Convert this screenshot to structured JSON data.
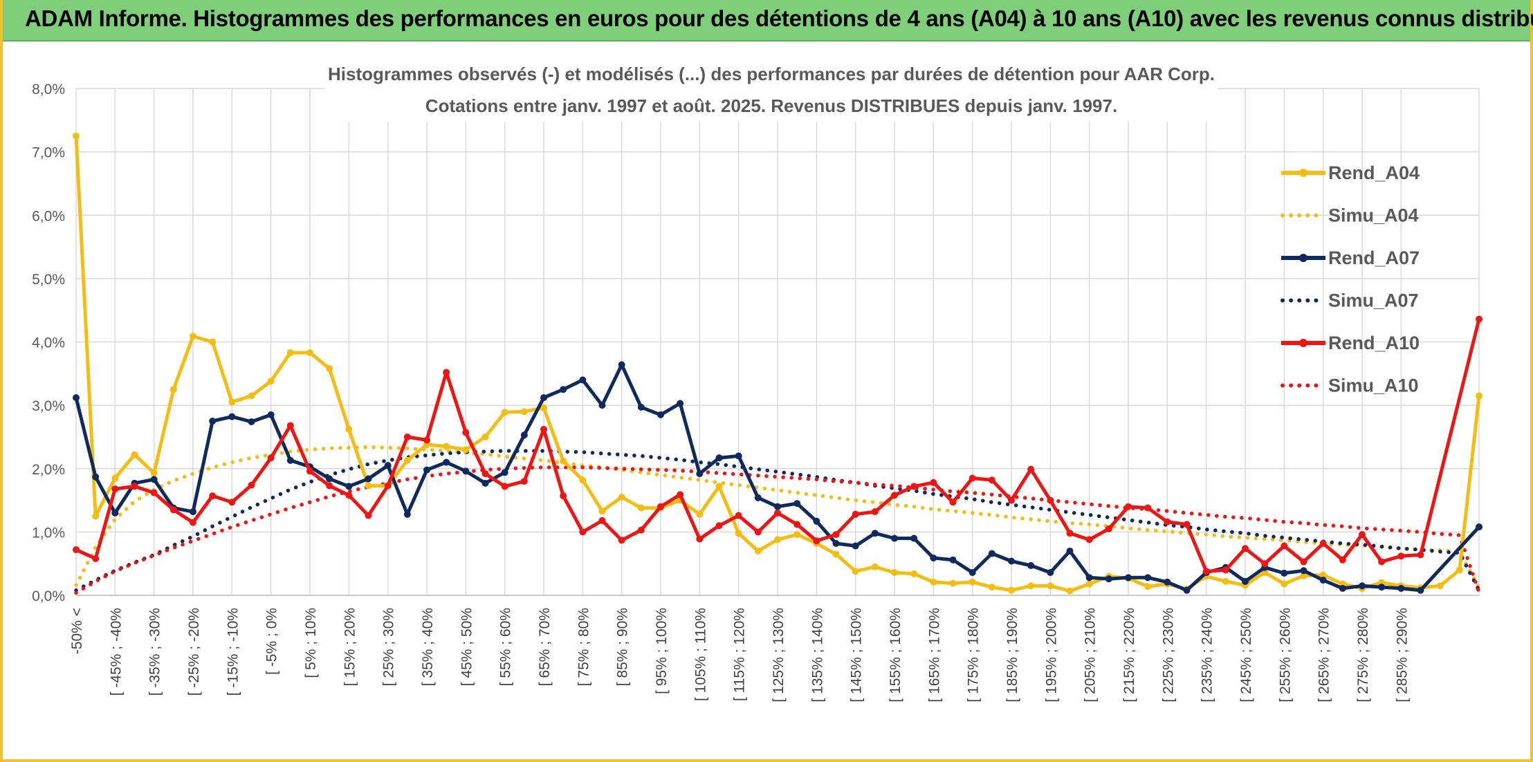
{
  "banner": {
    "title": "ADAM Informe. Histogrammes des performances en euros pour des détentions de 4 ans (A04) à 10 ans (A10) avec les revenus connus distribués"
  },
  "colors": {
    "frame": "#f0c232",
    "banner": "#7ece7a",
    "a04": "#f5bd14",
    "a07": "#0f2a5e",
    "a10": "#ee1515",
    "grid": "#d9d9d9"
  },
  "chart_data": {
    "type": "line",
    "title_line1": "Histogrammes observés (-) et modélisés (...) des performances par durées de détention pour AAR Corp.",
    "title_line2": "Cotations entre janv. 1997 et août. 2025. Revenus DISTRIBUES depuis janv. 1997.",
    "ylim": [
      0,
      8
    ],
    "yticks": [
      "0,0%",
      "1,0%",
      "2,0%",
      "3,0%",
      "4,0%",
      "5,0%",
      "6,0%",
      "7,0%",
      "8,0%"
    ],
    "grid": true,
    "legend_position": "right",
    "x_tick_labels": [
      "-50% <",
      "[ -45% ; -40%",
      "[ -35% ; -30%",
      "[ -25% ; -20%",
      "[ -15% ; -10%",
      "[ -5% ; 0%",
      "[ 5% ; 10%",
      "[ 15% ; 20%",
      "[ 25% ; 30%",
      "[ 35% ; 40%",
      "[ 45% ; 50%",
      "[ 55% ; 60%",
      "[ 65% ; 70%",
      "[ 75% ; 80%",
      "[ 85% ; 90%",
      "[ 95% ; 100%",
      "[ 105% ; 110%",
      "[ 115% ; 120%",
      "[ 125% ; 130%",
      "[ 135% ; 140%",
      "[ 145% ; 150%",
      "[ 155% ; 160%",
      "[ 165% ; 170%",
      "[ 175% ; 180%",
      "[ 185% ; 190%",
      "[ 195% ; 200%",
      "[ 205% ; 210%",
      "[ 215% ; 220%",
      "[ 225% ; 230%",
      "[ 235% ; 240%",
      "[ 245% ; 250%",
      "[ 255% ; 260%",
      "[ 265% ; 270%",
      "[ 275% ; 280%",
      "[ 285% ; 290%"
    ],
    "series": [
      {
        "name": "Rend_A04",
        "style": "solid",
        "color": "#f5bd14",
        "values": [
          7.25,
          1.25,
          1.85,
          2.22,
          1.93,
          3.25,
          4.09,
          4.0,
          3.05,
          3.15,
          3.38,
          3.83,
          3.83,
          3.58,
          2.62,
          1.73,
          1.73,
          2.13,
          2.38,
          2.35,
          2.3,
          2.5,
          2.89,
          2.9,
          2.96,
          2.12,
          1.82,
          1.33,
          1.55,
          1.38,
          1.38,
          1.5,
          1.28,
          1.72,
          0.98,
          0.7,
          0.88,
          0.96,
          0.82,
          0.65,
          0.38,
          0.45,
          0.36,
          0.34,
          0.21,
          0.19,
          0.21,
          0.13,
          0.08,
          0.15,
          0.15,
          0.07,
          0.18,
          0.3,
          0.27,
          0.14,
          0.18,
          0.1,
          0.3,
          0.22,
          0.16,
          0.36,
          0.18,
          0.31,
          0.32,
          0.18,
          0.11,
          0.2,
          0.15,
          0.12,
          0.15,
          0.4,
          3.15
        ]
      },
      {
        "name": "Simu_A04",
        "style": "dotted",
        "color": "#f5bd14",
        "values": [
          0.16,
          0.76,
          1.2,
          1.48,
          1.67,
          1.81,
          1.92,
          2.02,
          2.1,
          2.17,
          2.22,
          2.27,
          2.3,
          2.32,
          2.33,
          2.34,
          2.33,
          2.32,
          2.3,
          2.28,
          2.25,
          2.23,
          2.19,
          2.16,
          2.13,
          2.09,
          2.05,
          2.02,
          1.98,
          1.94,
          1.9,
          1.86,
          1.82,
          1.78,
          1.74,
          1.7,
          1.66,
          1.62,
          1.58,
          1.54,
          1.5,
          1.47,
          1.43,
          1.4,
          1.36,
          1.33,
          1.3,
          1.27,
          1.23,
          1.2,
          1.17,
          1.14,
          1.12,
          1.09,
          1.06,
          1.03,
          1.01,
          0.98,
          0.96,
          0.93,
          0.91,
          0.89,
          0.87,
          0.84,
          0.82,
          0.8,
          0.78,
          0.76,
          0.74,
          0.72,
          0.71,
          0.69,
          0.12
        ]
      },
      {
        "name": "Rend_A07",
        "style": "solid",
        "color": "#0f2a5e",
        "values": [
          3.12,
          1.87,
          1.3,
          1.77,
          1.83,
          1.38,
          1.32,
          2.75,
          2.82,
          2.74,
          2.85,
          2.13,
          2.03,
          1.84,
          1.72,
          1.84,
          2.05,
          1.28,
          1.98,
          2.1,
          1.96,
          1.77,
          1.94,
          2.53,
          3.12,
          3.25,
          3.4,
          3.0,
          3.64,
          2.97,
          2.85,
          3.03,
          1.92,
          2.17,
          2.2,
          1.54,
          1.4,
          1.45,
          1.17,
          0.82,
          0.78,
          0.98,
          0.9,
          0.9,
          0.59,
          0.56,
          0.36,
          0.66,
          0.54,
          0.47,
          0.36,
          0.7,
          0.28,
          0.26,
          0.28,
          0.28,
          0.21,
          0.08,
          0.36,
          0.44,
          0.22,
          0.44,
          0.35,
          0.39,
          0.24,
          0.11,
          0.15,
          0.13,
          0.11,
          0.08,
          1.08
        ]
      },
      {
        "name": "Simu_A07",
        "style": "dotted",
        "color": "#0f2a5e",
        "values": [
          0.08,
          0.24,
          0.39,
          0.52,
          0.64,
          0.79,
          0.93,
          1.09,
          1.24,
          1.39,
          1.53,
          1.67,
          1.79,
          1.9,
          1.99,
          2.07,
          2.13,
          2.18,
          2.21,
          2.24,
          2.26,
          2.27,
          2.28,
          2.28,
          2.28,
          2.27,
          2.26,
          2.24,
          2.22,
          2.2,
          2.17,
          2.14,
          2.1,
          2.07,
          2.03,
          1.99,
          1.95,
          1.91,
          1.87,
          1.82,
          1.78,
          1.73,
          1.69,
          1.65,
          1.6,
          1.56,
          1.52,
          1.47,
          1.43,
          1.39,
          1.35,
          1.31,
          1.27,
          1.23,
          1.19,
          1.15,
          1.11,
          1.08,
          1.04,
          1.01,
          0.98,
          0.94,
          0.91,
          0.88,
          0.85,
          0.82,
          0.8,
          0.77,
          0.74,
          0.72,
          0.69,
          0.67,
          0.08
        ]
      },
      {
        "name": "Rend_A10",
        "style": "solid",
        "color": "#ee1515",
        "values": [
          0.72,
          0.58,
          1.68,
          1.72,
          1.62,
          1.35,
          1.15,
          1.57,
          1.47,
          1.74,
          2.17,
          2.68,
          1.96,
          1.73,
          1.58,
          1.26,
          1.73,
          2.5,
          2.45,
          3.52,
          2.57,
          1.92,
          1.72,
          1.8,
          2.62,
          1.57,
          1.0,
          1.18,
          0.87,
          1.03,
          1.4,
          1.59,
          0.89,
          1.1,
          1.26,
          1.0,
          1.3,
          1.12,
          0.86,
          0.96,
          1.28,
          1.32,
          1.58,
          1.72,
          1.78,
          1.47,
          1.85,
          1.82,
          1.5,
          1.99,
          1.5,
          0.98,
          0.88,
          1.05,
          1.4,
          1.38,
          1.16,
          1.12,
          0.38,
          0.4,
          0.74,
          0.5,
          0.78,
          0.53,
          0.82,
          0.56,
          0.96,
          0.53,
          0.62,
          0.64,
          4.36
        ]
      },
      {
        "name": "Simu_A10",
        "style": "dotted",
        "color": "#ee1515",
        "values": [
          0.04,
          0.22,
          0.38,
          0.51,
          0.63,
          0.75,
          0.86,
          0.97,
          1.08,
          1.18,
          1.28,
          1.38,
          1.47,
          1.56,
          1.64,
          1.71,
          1.77,
          1.83,
          1.88,
          1.92,
          1.95,
          1.98,
          2.0,
          2.01,
          2.02,
          2.02,
          2.02,
          2.01,
          2.0,
          1.99,
          1.98,
          1.97,
          1.95,
          1.93,
          1.91,
          1.89,
          1.87,
          1.85,
          1.83,
          1.8,
          1.78,
          1.75,
          1.73,
          1.7,
          1.67,
          1.64,
          1.62,
          1.59,
          1.56,
          1.53,
          1.5,
          1.47,
          1.44,
          1.41,
          1.38,
          1.36,
          1.33,
          1.3,
          1.27,
          1.24,
          1.22,
          1.19,
          1.16,
          1.14,
          1.11,
          1.09,
          1.06,
          1.04,
          1.02,
          1.0,
          0.97,
          0.95,
          0.05
        ]
      }
    ]
  }
}
